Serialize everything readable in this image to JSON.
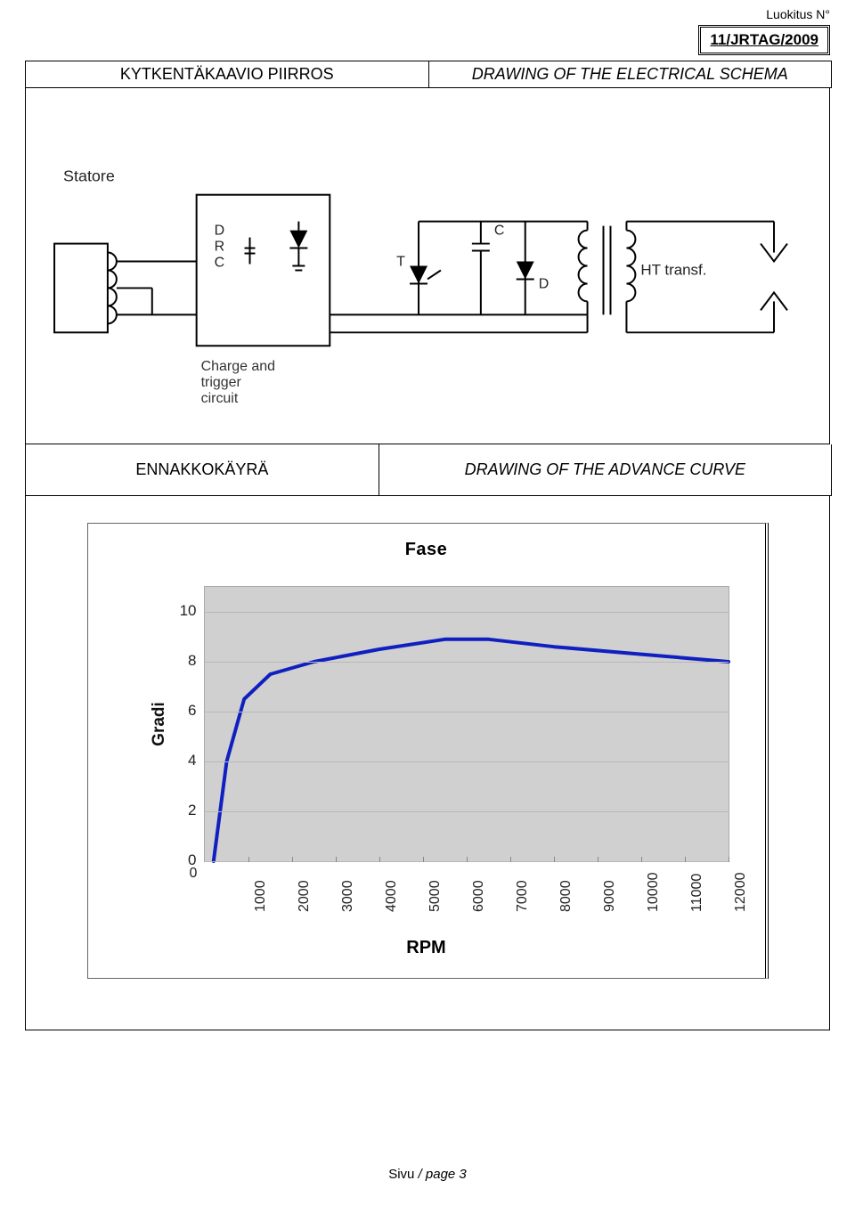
{
  "top_label": "Luokitus N°",
  "reference": "11/JRTAG/2009",
  "header": {
    "left": "KYTKENTÄKAAVIO PIIRROS",
    "right": "DRAWING OF THE ELECTRICAL SCHEMA"
  },
  "schema": {
    "statore_label": "Statore",
    "drc_label": "D\nR\nC",
    "sub_label": "Charge and\ntrigger\ncircuit",
    "T_label": "T",
    "C_label": "C",
    "D_label": "D",
    "ht_label": "HT transf."
  },
  "midheader": {
    "left": "ENNAKKOKÄYRÄ",
    "right": "DRAWING OF THE ADVANCE CURVE"
  },
  "chart": {
    "title": "Fase",
    "ylabel": "Gradi",
    "xlabel": "RPM",
    "yticks": [
      0,
      2,
      4,
      6,
      8,
      10
    ],
    "xticks": [
      1000,
      2000,
      3000,
      4000,
      5000,
      6000,
      7000,
      8000,
      9000,
      10000,
      11000,
      12000
    ],
    "xzero": 0,
    "curve_color": "#1020c0",
    "curve_width": 4,
    "plot_bg": "#d0d0d0",
    "data_points": [
      {
        "x": 200,
        "y": 0.0
      },
      {
        "x": 500,
        "y": 4.0
      },
      {
        "x": 900,
        "y": 6.5
      },
      {
        "x": 1500,
        "y": 7.5
      },
      {
        "x": 2500,
        "y": 8.0
      },
      {
        "x": 4000,
        "y": 8.5
      },
      {
        "x": 5500,
        "y": 8.9
      },
      {
        "x": 6500,
        "y": 8.9
      },
      {
        "x": 8000,
        "y": 8.6
      },
      {
        "x": 10000,
        "y": 8.3
      },
      {
        "x": 12000,
        "y": 8.0
      }
    ],
    "x_domain": [
      0,
      12000
    ],
    "y_domain": [
      0,
      11
    ]
  },
  "footer": {
    "text_left": "Sivu",
    "text_right": " / page 3"
  }
}
